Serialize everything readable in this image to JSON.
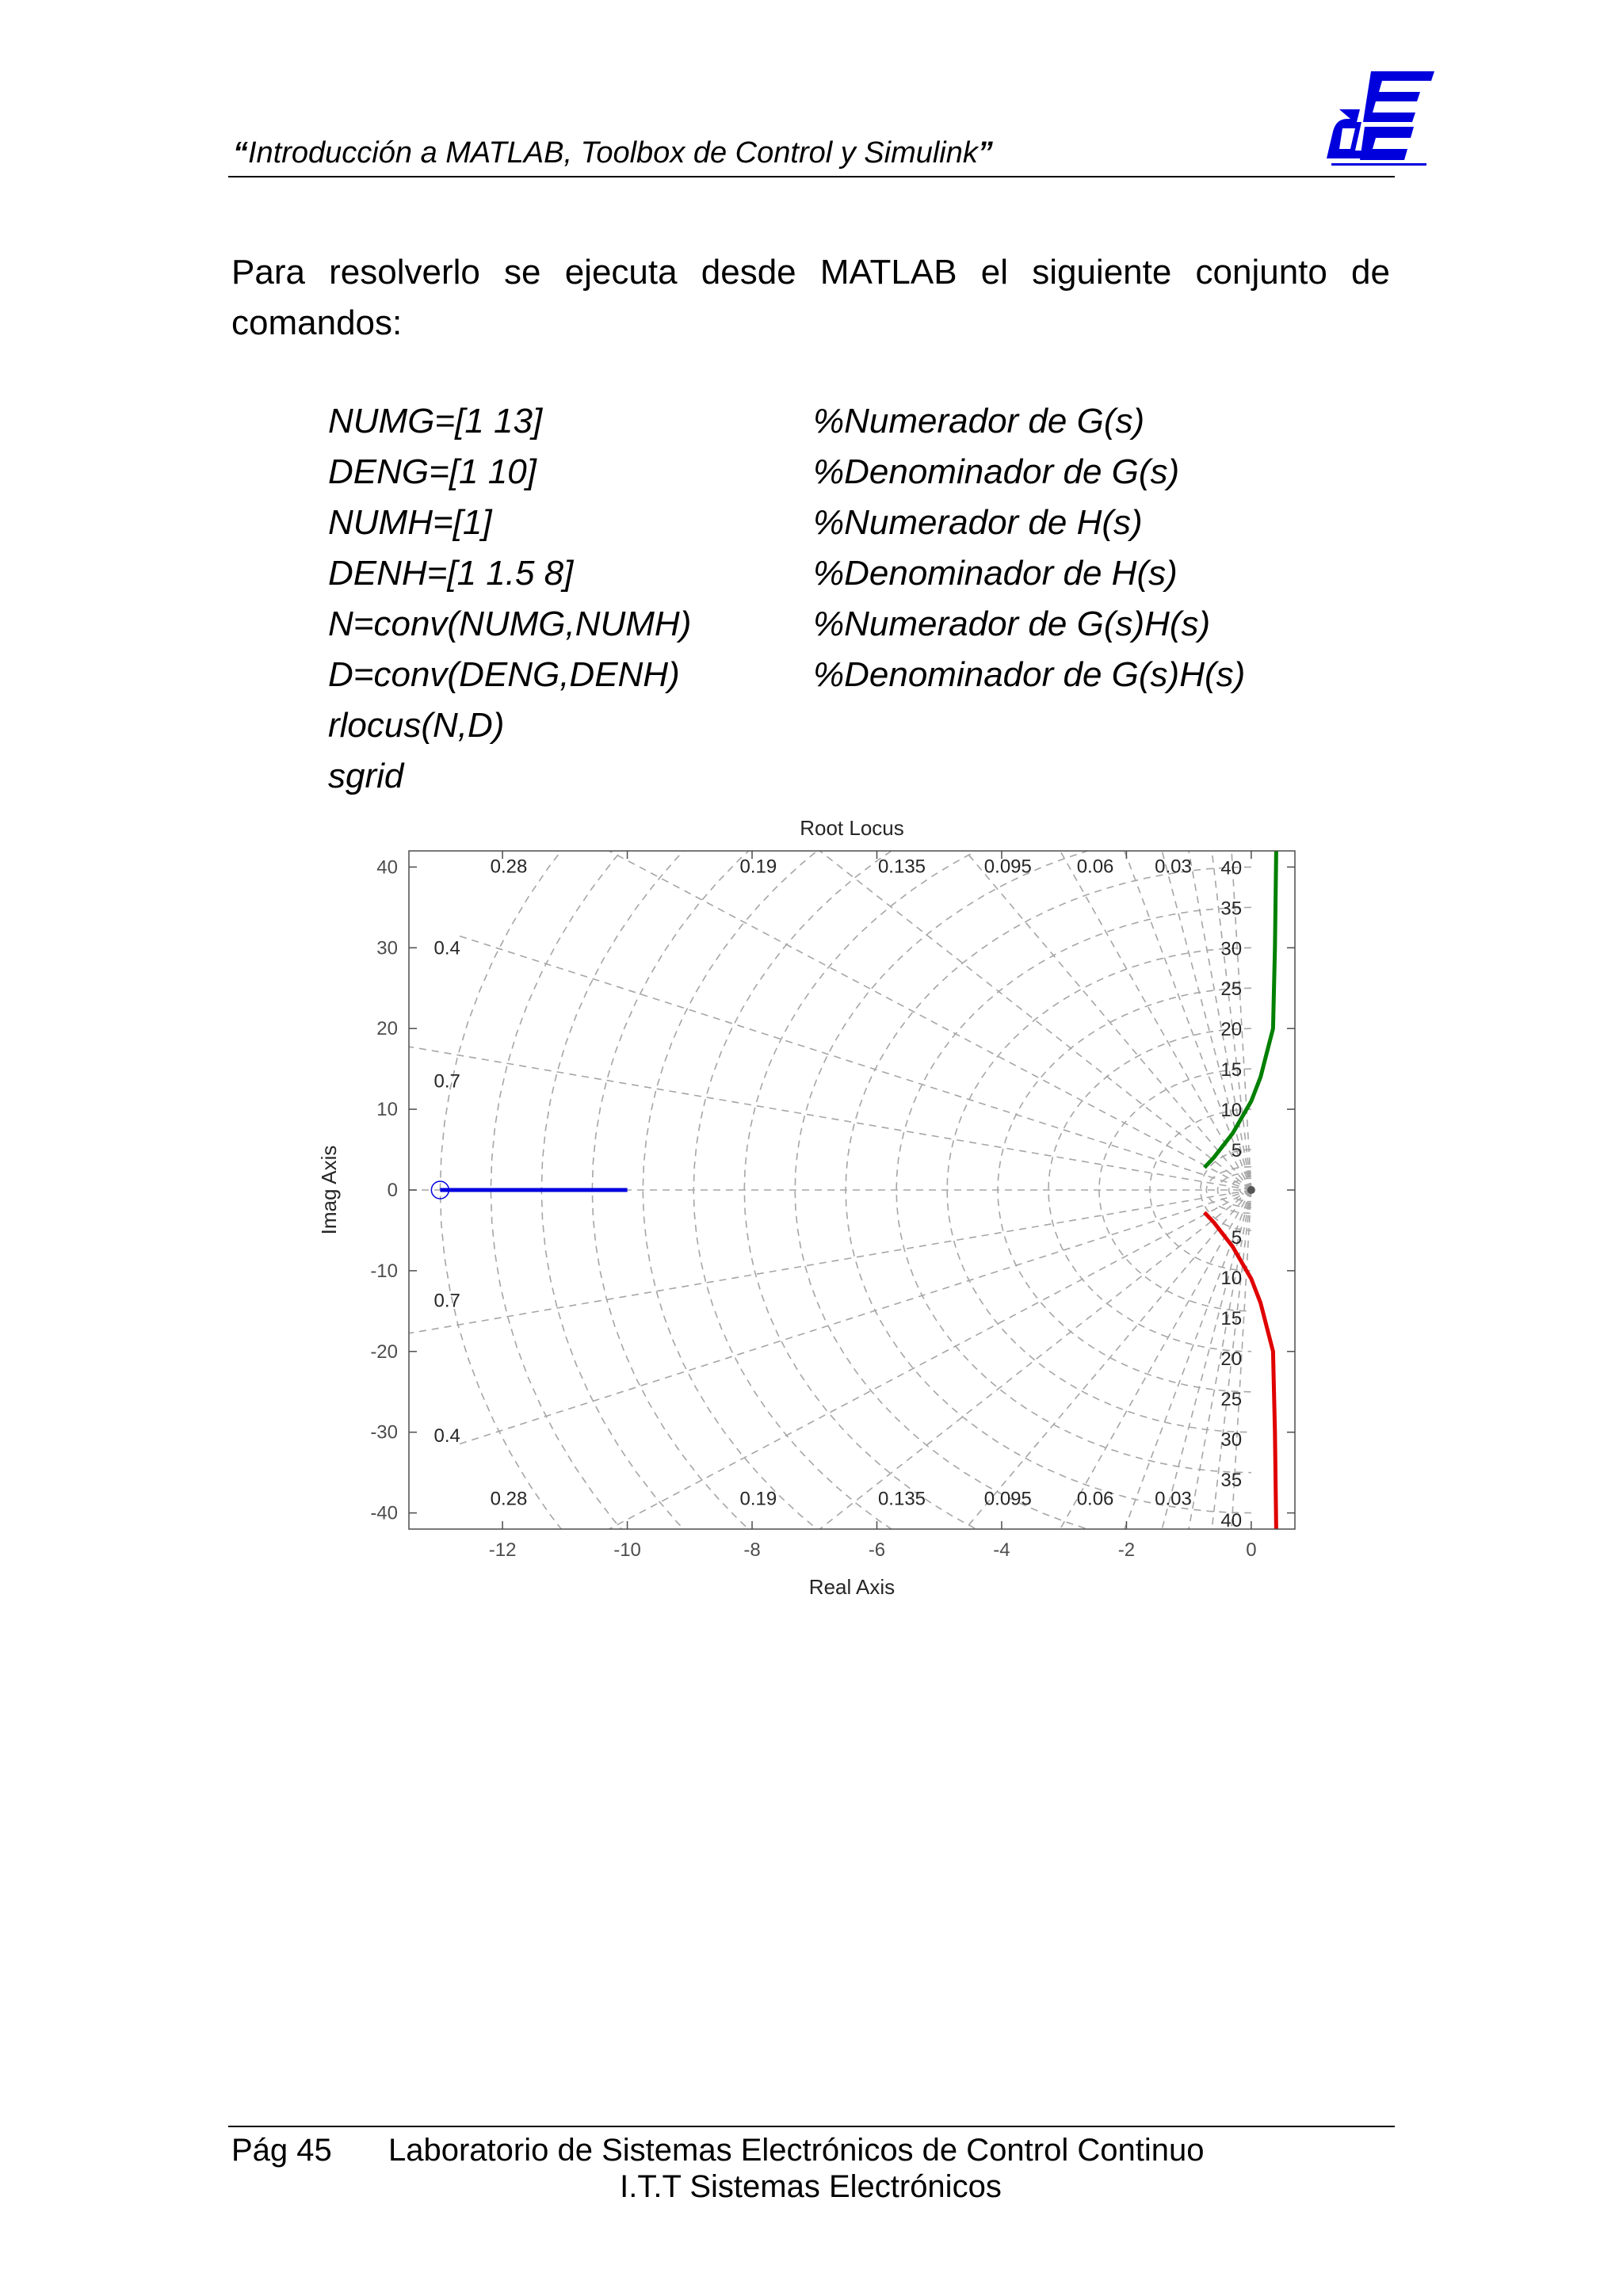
{
  "header": {
    "title_quote_open": "“",
    "title": "Introducción a MATLAB, Toolbox de Control y Simulink",
    "title_quote_close": "”",
    "logo_text": "dE"
  },
  "intro": "Para resolverlo se ejecuta desde MATLAB el siguiente conjunto de comandos:",
  "code": [
    {
      "cmd": "NUMG=[1 13]",
      "comment": "%Numerador de G(s)"
    },
    {
      "cmd": "DENG=[1 10]",
      "comment": "%Denominador de G(s)"
    },
    {
      "cmd": "NUMH=[1]",
      "comment": "%Numerador de H(s)"
    },
    {
      "cmd": "DENH=[1 1.5 8]",
      "comment": "%Denominador de H(s)"
    },
    {
      "cmd": "N=conv(NUMG,NUMH)",
      "comment": "%Numerador de G(s)H(s)"
    },
    {
      "cmd": "D=conv(DENG,DENH)",
      "comment": "%Denominador de G(s)H(s)"
    },
    {
      "cmd": "rlocus(N,D)",
      "comment": ""
    },
    {
      "cmd": "sgrid",
      "comment": ""
    }
  ],
  "chart_data": {
    "type": "line",
    "title": "Root Locus",
    "xlabel": "Real Axis",
    "ylabel": "Imag Axis",
    "xlim": [
      -13.5,
      0.7
    ],
    "ylim": [
      -42,
      42
    ],
    "xticks": [
      -12,
      -10,
      -8,
      -6,
      -4,
      -2,
      0
    ],
    "yticks": [
      -40,
      -30,
      -20,
      -10,
      0,
      10,
      20,
      30,
      40
    ],
    "grid": "sgrid (damping lines and natural-frequency arcs)",
    "damping_labels": [
      "0.28",
      "0.19",
      "0.135",
      "0.095",
      "0.06",
      "0.03",
      "0.4",
      "0.7"
    ],
    "frequency_labels": [
      "40",
      "35",
      "30",
      "25",
      "20",
      "15",
      "10",
      "5"
    ],
    "series": [
      {
        "color": "#0000e0",
        "points": [
          [
            -13,
            0
          ],
          [
            -10,
            0
          ]
        ]
      },
      {
        "color": "#008000",
        "points": [
          [
            -0.75,
            2.78
          ],
          [
            -0.6,
            4
          ],
          [
            -0.3,
            7
          ],
          [
            0,
            11
          ],
          [
            0.15,
            14
          ],
          [
            0.35,
            20
          ],
          [
            0.38,
            30
          ],
          [
            0.4,
            42
          ]
        ]
      },
      {
        "color": "#e00000",
        "points": [
          [
            -0.75,
            -2.78
          ],
          [
            -0.6,
            -4
          ],
          [
            -0.3,
            -7
          ],
          [
            0,
            -11
          ],
          [
            0.15,
            -14
          ],
          [
            0.35,
            -20
          ],
          [
            0.38,
            -30
          ],
          [
            0.4,
            -42
          ]
        ]
      }
    ],
    "open_loop_zeros": [
      [
        -13,
        0
      ]
    ],
    "open_loop_poles": [
      [
        -10,
        0
      ],
      [
        -0.75,
        2.78
      ],
      [
        -0.75,
        -2.78
      ]
    ],
    "colors": {
      "axis_text": "#4d4d4d",
      "grid": "#a6a6a6"
    }
  },
  "footer": {
    "page": "Pág 45",
    "line1": "Laboratorio de Sistemas Electrónicos de Control Continuo",
    "line2": "I.T.T Sistemas Electrónicos"
  }
}
